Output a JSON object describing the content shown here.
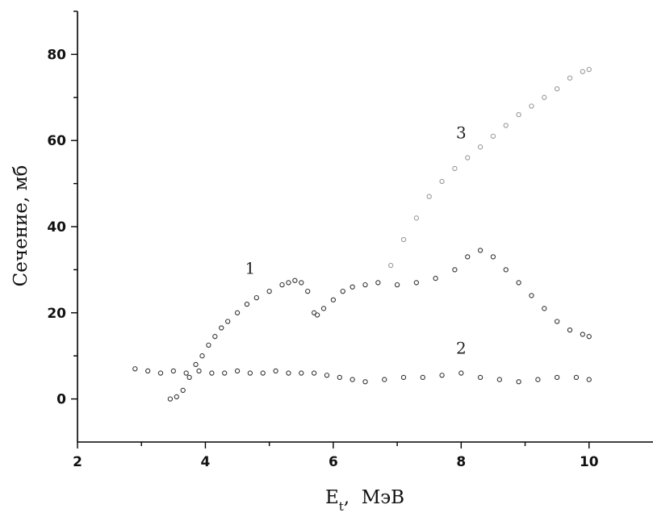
{
  "chart_data": {
    "type": "scatter",
    "title": "",
    "xlabel": "E",
    "xlabel_sub": "t",
    "xlabel_unit": ",  МэВ",
    "ylabel": "Сечение,  мб",
    "xlim": [
      2,
      11
    ],
    "ylim": [
      -10,
      90
    ],
    "x_ticks": [
      2,
      4,
      6,
      8,
      10
    ],
    "x_tick_labels": [
      "2",
      "4",
      "6",
      "8",
      "10"
    ],
    "y_ticks": [
      0,
      20,
      40,
      60,
      80
    ],
    "y_tick_labels": [
      "0",
      "20",
      "40",
      "60",
      "80"
    ],
    "grid": false,
    "legend": "none",
    "annotations": [
      {
        "text": "1",
        "x": 4.7,
        "y": 29
      },
      {
        "text": "2",
        "x": 8.0,
        "y": 10.5
      },
      {
        "text": "3",
        "x": 8.0,
        "y": 60.5
      }
    ],
    "series": [
      {
        "id": "1",
        "color": "#333333",
        "x": [
          3.45,
          3.55,
          3.65,
          3.75,
          3.85,
          3.95,
          4.05,
          4.15,
          4.25,
          4.35,
          4.5,
          4.65,
          4.8,
          5.0,
          5.2,
          5.3,
          5.4,
          5.5,
          5.6,
          5.7,
          5.75,
          5.85,
          6.0,
          6.15,
          6.3,
          6.5,
          6.7,
          7.0,
          7.3,
          7.6,
          7.9,
          8.1,
          8.3,
          8.5,
          8.7,
          8.9,
          9.1,
          9.3,
          9.5,
          9.7,
          9.9,
          10.0
        ],
        "y": [
          0,
          0.5,
          2,
          5,
          8,
          10,
          12.5,
          14.5,
          16.5,
          18,
          20,
          22,
          23.5,
          25,
          26.5,
          27,
          27.5,
          27,
          25,
          20,
          19.5,
          21,
          23,
          25,
          26,
          26.5,
          27,
          26.5,
          27,
          28,
          30,
          33,
          34.5,
          33,
          30,
          27,
          24,
          21,
          18,
          16,
          15,
          14.5
        ]
      },
      {
        "id": "2",
        "color": "#333333",
        "x": [
          2.9,
          3.1,
          3.3,
          3.5,
          3.7,
          3.9,
          4.1,
          4.3,
          4.5,
          4.7,
          4.9,
          5.1,
          5.3,
          5.5,
          5.7,
          5.9,
          6.1,
          6.3,
          6.5,
          6.8,
          7.1,
          7.4,
          7.7,
          8.0,
          8.3,
          8.6,
          8.9,
          9.2,
          9.5,
          9.8,
          10.0
        ],
        "y": [
          7,
          6.5,
          6,
          6.5,
          6,
          6.5,
          6,
          6,
          6.5,
          6,
          6,
          6.5,
          6,
          6,
          6,
          5.5,
          5,
          4.5,
          4,
          4.5,
          5,
          5,
          5.5,
          6,
          5,
          4.5,
          4,
          4.5,
          5,
          5,
          4.5
        ]
      },
      {
        "id": "3",
        "color": "#999999",
        "x": [
          6.9,
          7.1,
          7.3,
          7.5,
          7.7,
          7.9,
          8.1,
          8.3,
          8.5,
          8.7,
          8.9,
          9.1,
          9.3,
          9.5,
          9.7,
          9.9,
          10.0
        ],
        "y": [
          31,
          37,
          42,
          47,
          50.5,
          53.5,
          56,
          58.5,
          61,
          63.5,
          66,
          68,
          70,
          72,
          74.5,
          76,
          76.5
        ]
      }
    ]
  }
}
